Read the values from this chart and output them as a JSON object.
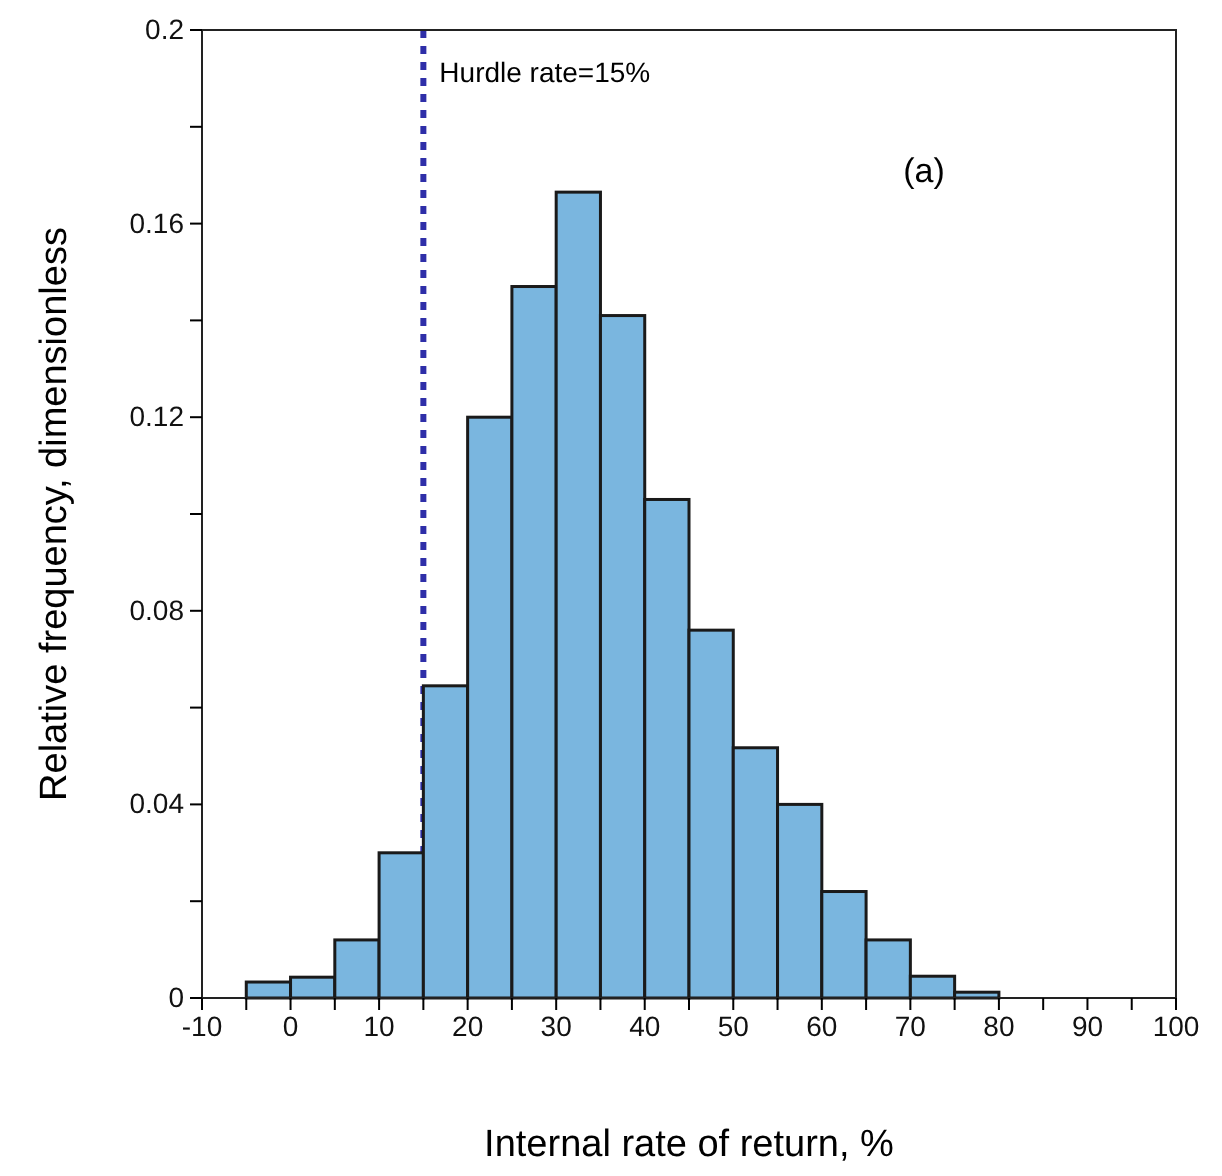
{
  "chart_data": {
    "type": "histogram",
    "xlabel": "Internal rate of return, %",
    "ylabel": "Relative frequency, dimensionless",
    "bins": [
      -5,
      0,
      5,
      10,
      15,
      20,
      25,
      30,
      35,
      40,
      45,
      50,
      55,
      60,
      65,
      70,
      75,
      80
    ],
    "values": [
      0.0033,
      0.0043,
      0.012,
      0.03,
      0.0645,
      0.12,
      0.147,
      0.1665,
      0.141,
      0.103,
      0.076,
      0.0517,
      0.04,
      0.022,
      0.012,
      0.0045,
      0.0012
    ],
    "color": "#7ab6df",
    "xlim": [
      -10,
      100
    ],
    "xticks": [
      -10,
      {
        "value": -5,
        "label": null
      },
      0,
      {
        "value": 5,
        "label": null
      },
      10,
      {
        "value": 15,
        "label": null
      },
      20,
      {
        "value": 25,
        "label": null
      },
      30,
      {
        "value": 35,
        "label": null
      },
      40,
      {
        "value": 45,
        "label": null
      },
      50,
      {
        "value": 55,
        "label": null
      },
      60,
      {
        "value": 65,
        "label": null
      },
      70,
      {
        "value": 75,
        "label": null
      },
      80,
      {
        "value": 85,
        "label": null
      },
      90,
      {
        "value": 95,
        "label": null
      },
      100
    ],
    "ylim": [
      0,
      0.2
    ],
    "yticks": [
      0,
      {
        "value": 0.02,
        "label": null
      },
      0.04,
      {
        "value": 0.06,
        "label": null
      },
      0.08,
      {
        "value": 0.1,
        "label": null
      },
      0.12,
      {
        "value": 0.14,
        "label": null
      },
      0.16,
      {
        "value": 0.18,
        "label": null
      },
      0.2
    ],
    "ref_lines": [
      {
        "axis": "x",
        "value": 15,
        "label": "Hurdle rate=15%",
        "color": "#2e2ea8",
        "line_style": "dotted"
      }
    ],
    "annotations": [
      "(a)"
    ]
  }
}
